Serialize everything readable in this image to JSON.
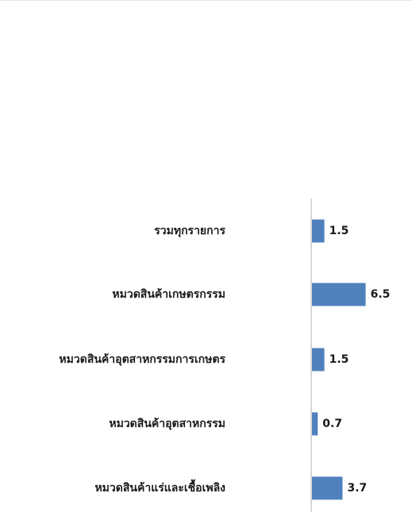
{
  "chart_data": {
    "type": "bar",
    "orientation": "horizontal",
    "categories": [
      "รวมทุกรายการ",
      "หมวดสินค้าเกษตรกรรม",
      "หมวดสินค้าอุตสาหกรรมการเกษตร",
      "หมวดสินค้าอุตสาหกรรม",
      "หมวดสินค้าแร่และเชื้อเพลิง"
    ],
    "values": [
      1.5,
      6.5,
      1.5,
      0.7,
      3.7
    ],
    "value_labels": [
      "1.5",
      "6.5",
      "1.5",
      "0.7",
      "3.7"
    ],
    "bar_color": "#4f81bd",
    "axis_color": "#d9d9d9",
    "grid": false,
    "legend": "none"
  }
}
